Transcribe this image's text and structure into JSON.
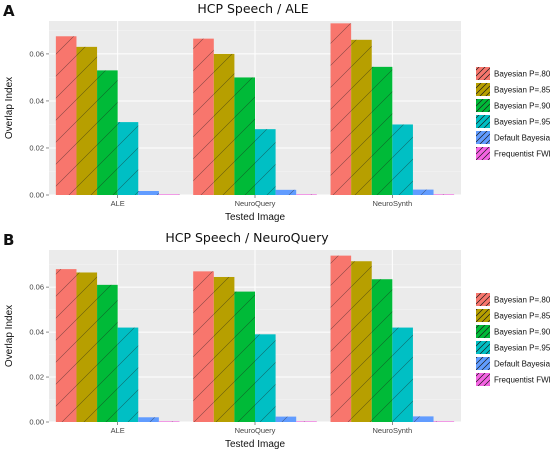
{
  "chart_data": [
    {
      "type": "bar",
      "panel_label": "A",
      "title": "HCP Speech / ALE",
      "xlabel": "Tested Image",
      "ylabel": "Overlap Index",
      "categories": [
        "ALE",
        "NeuroQuery",
        "NeuroSynth"
      ],
      "ylim": [
        0,
        0.074
      ],
      "yticks": [
        0.0,
        0.02,
        0.04,
        0.06
      ],
      "ytick_labels": [
        "0.00",
        "0.02",
        "0.04",
        "0.06"
      ],
      "grid": true,
      "legend_position": "right",
      "series": [
        {
          "name": "Bayesian P=.80",
          "color": "#F8766D",
          "values": [
            0.0675,
            0.0665,
            0.073
          ]
        },
        {
          "name": "Bayesian P=.85",
          "color": "#B79F00",
          "values": [
            0.063,
            0.06,
            0.066
          ]
        },
        {
          "name": "Bayesian P=.90",
          "color": "#00BA38",
          "values": [
            0.053,
            0.05,
            0.0545
          ]
        },
        {
          "name": "Bayesian P=.95",
          "color": "#00BFC4",
          "values": [
            0.031,
            0.028,
            0.03
          ]
        },
        {
          "name": "Default Bayesian",
          "color": "#619CFF",
          "values": [
            0.0017,
            0.0022,
            0.0023
          ]
        },
        {
          "name": "Frequentist FWE",
          "color": "#F564E3",
          "values": [
            0.0,
            0.0002,
            0.0
          ]
        }
      ]
    },
    {
      "type": "bar",
      "panel_label": "B",
      "title": "HCP Speech / NeuroQuery",
      "xlabel": "Tested Image",
      "ylabel": "Overlap Index",
      "categories": [
        "ALE",
        "NeuroQuery",
        "NeuroSynth"
      ],
      "ylim": [
        0,
        0.0765
      ],
      "yticks": [
        0.0,
        0.02,
        0.04,
        0.06
      ],
      "ytick_labels": [
        "0.00",
        "0.02",
        "0.04",
        "0.06"
      ],
      "grid": true,
      "legend_position": "right",
      "series": [
        {
          "name": "Bayesian P=.80",
          "color": "#F8766D",
          "values": [
            0.068,
            0.067,
            0.074
          ]
        },
        {
          "name": "Bayesian P=.85",
          "color": "#B79F00",
          "values": [
            0.0665,
            0.0645,
            0.0715
          ]
        },
        {
          "name": "Bayesian P=.90",
          "color": "#00BA38",
          "values": [
            0.061,
            0.058,
            0.0635
          ]
        },
        {
          "name": "Bayesian P=.95",
          "color": "#00BFC4",
          "values": [
            0.042,
            0.039,
            0.042
          ]
        },
        {
          "name": "Default Bayesian",
          "color": "#619CFF",
          "values": [
            0.0021,
            0.0024,
            0.0025
          ]
        },
        {
          "name": "Frequentist FWE",
          "color": "#F564E3",
          "values": [
            0.0,
            0.0002,
            0.0
          ]
        }
      ]
    }
  ]
}
